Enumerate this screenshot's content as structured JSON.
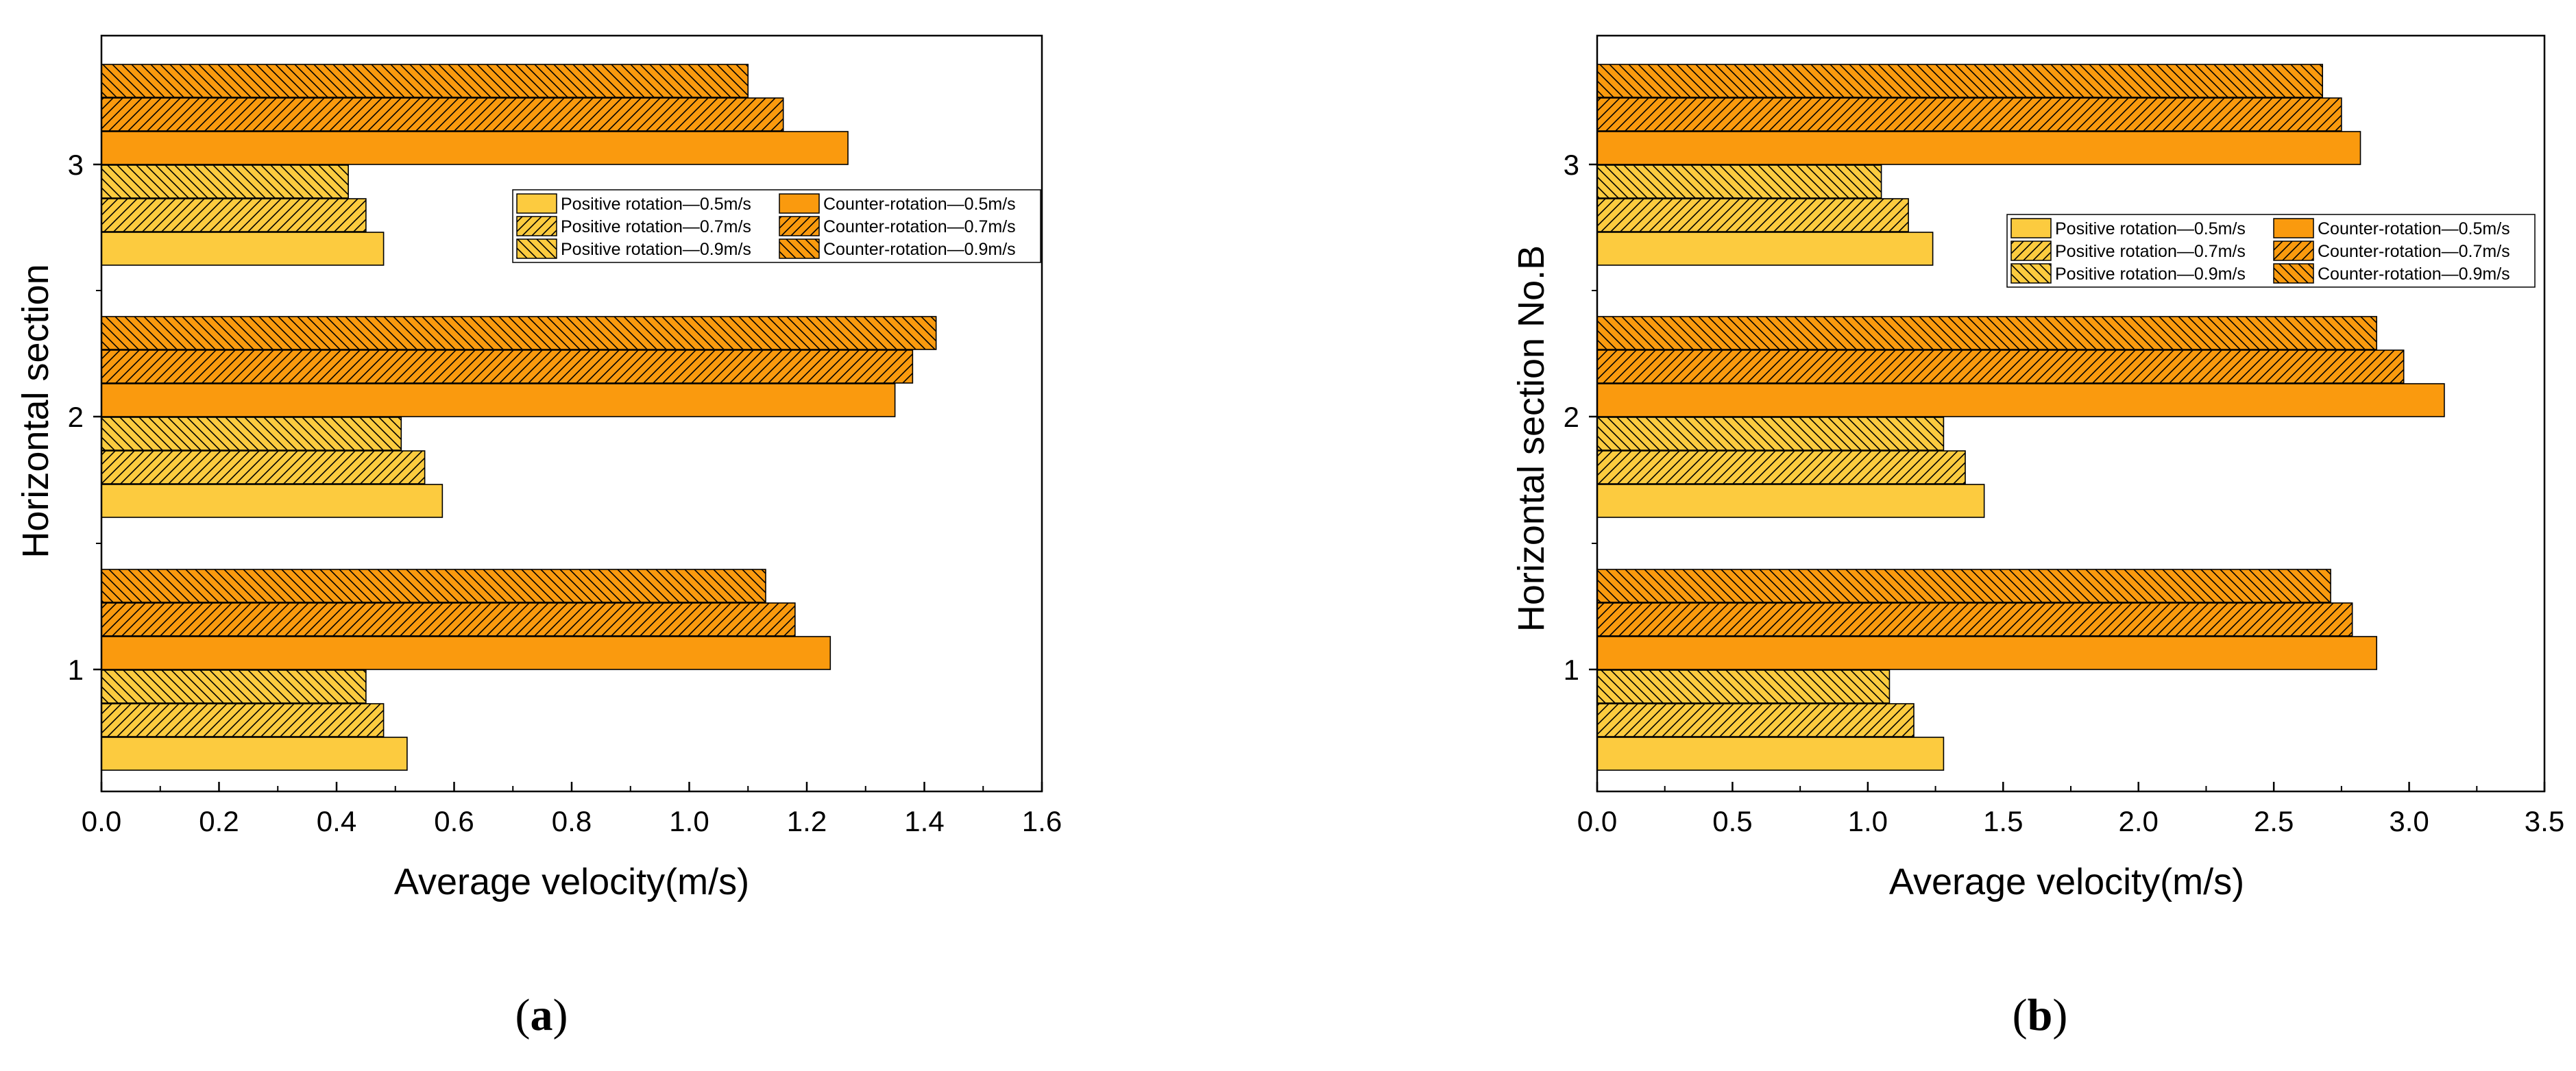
{
  "colors": {
    "positive": "#FCCB3F",
    "counter": "#FA9A0E",
    "edge": "#000000"
  },
  "chart_data": [
    {
      "type": "bar",
      "orientation": "horizontal",
      "caption": {
        "open": "(",
        "letter": "a",
        "close": ")"
      },
      "xlabel": "Average velocity(m/s)",
      "ylabel": "Horizontal section",
      "xlim": [
        0,
        1.6
      ],
      "xticks": [
        "0.0",
        "0.2",
        "0.4",
        "0.6",
        "0.8",
        "1.0",
        "1.2",
        "1.4",
        "1.6"
      ],
      "categories": [
        "1",
        "2",
        "3"
      ],
      "legend_position": "right-upper",
      "series": [
        {
          "name": "Positive rotation—0.5m/s",
          "group": "positive",
          "pattern": "solid",
          "values": [
            0.52,
            0.58,
            0.48
          ]
        },
        {
          "name": "Positive rotation—0.7m/s",
          "group": "positive",
          "pattern": "forward-hatch",
          "values": [
            0.48,
            0.55,
            0.45
          ]
        },
        {
          "name": "Positive rotation—0.9m/s",
          "group": "positive",
          "pattern": "back-hatch",
          "values": [
            0.45,
            0.51,
            0.42
          ]
        },
        {
          "name": "Counter-rotation—0.5m/s",
          "group": "counter",
          "pattern": "solid",
          "values": [
            1.24,
            1.35,
            1.27
          ]
        },
        {
          "name": "Counter-rotation—0.7m/s",
          "group": "counter",
          "pattern": "forward-hatch",
          "values": [
            1.18,
            1.38,
            1.16
          ]
        },
        {
          "name": "Counter-rotation—0.9m/s",
          "group": "counter",
          "pattern": "back-hatch",
          "values": [
            1.13,
            1.42,
            1.1
          ]
        }
      ]
    },
    {
      "type": "bar",
      "orientation": "horizontal",
      "caption": {
        "open": "(",
        "letter": "b",
        "close": ")"
      },
      "xlabel": "Average velocity(m/s)",
      "ylabel": "Horizontal section No.B",
      "xlim": [
        0,
        3.5
      ],
      "xticks": [
        "0.0",
        "0.5",
        "1.0",
        "1.5",
        "2.0",
        "2.5",
        "3.0",
        "3.5"
      ],
      "categories": [
        "1",
        "2",
        "3"
      ],
      "legend_position": "right-middle",
      "series": [
        {
          "name": "Positive rotation—0.5m/s",
          "group": "positive",
          "pattern": "solid",
          "values": [
            1.28,
            1.43,
            1.24
          ]
        },
        {
          "name": "Positive rotation—0.7m/s",
          "group": "positive",
          "pattern": "forward-hatch",
          "values": [
            1.17,
            1.36,
            1.15
          ]
        },
        {
          "name": "Positive rotation—0.9m/s",
          "group": "positive",
          "pattern": "back-hatch",
          "values": [
            1.08,
            1.28,
            1.05
          ]
        },
        {
          "name": "Counter-rotation—0.5m/s",
          "group": "counter",
          "pattern": "solid",
          "values": [
            2.88,
            3.13,
            2.82
          ]
        },
        {
          "name": "Counter-rotation—0.7m/s",
          "group": "counter",
          "pattern": "forward-hatch",
          "values": [
            2.79,
            2.98,
            2.75
          ]
        },
        {
          "name": "Counter-rotation—0.9m/s",
          "group": "counter",
          "pattern": "back-hatch",
          "values": [
            2.71,
            2.88,
            2.68
          ]
        }
      ]
    }
  ]
}
